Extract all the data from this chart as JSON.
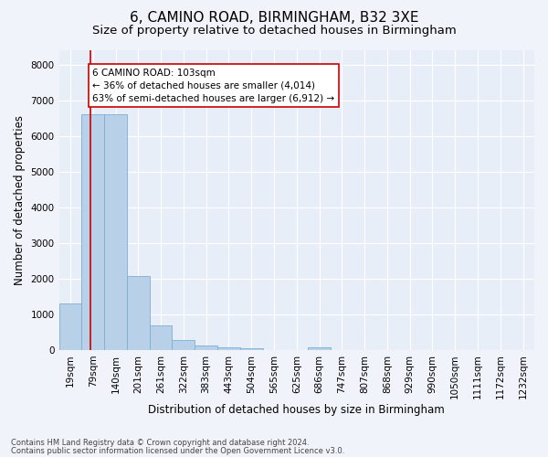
{
  "title": "6, CAMINO ROAD, BIRMINGHAM, B32 3XE",
  "subtitle": "Size of property relative to detached houses in Birmingham",
  "xlabel": "Distribution of detached houses by size in Birmingham",
  "ylabel": "Number of detached properties",
  "footnote1": "Contains HM Land Registry data © Crown copyright and database right 2024.",
  "footnote2": "Contains public sector information licensed under the Open Government Licence v3.0.",
  "bar_categories": [
    "19sqm",
    "79sqm",
    "140sqm",
    "201sqm",
    "261sqm",
    "322sqm",
    "383sqm",
    "443sqm",
    "504sqm",
    "565sqm",
    "625sqm",
    "686sqm",
    "747sqm",
    "807sqm",
    "868sqm",
    "929sqm",
    "990sqm",
    "1050sqm",
    "1111sqm",
    "1172sqm",
    "1232sqm"
  ],
  "bar_values": [
    1300,
    6600,
    6600,
    2080,
    700,
    290,
    130,
    80,
    55,
    0,
    0,
    60,
    0,
    0,
    0,
    0,
    0,
    0,
    0,
    0,
    0
  ],
  "bar_color": "#b8d0e8",
  "bar_edge_color": "#7aafd4",
  "vline_color": "#cc0000",
  "vline_x_index": 1.38,
  "annotation_title": "6 CAMINO ROAD: 103sqm",
  "annotation_line1": "← 36% of detached houses are smaller (4,014)",
  "annotation_line2": "63% of semi-detached houses are larger (6,912) →",
  "annotation_box_color": "#ffffff",
  "annotation_box_edge": "#cc0000",
  "ylim": [
    0,
    8400
  ],
  "yticks": [
    0,
    1000,
    2000,
    3000,
    4000,
    5000,
    6000,
    7000,
    8000
  ],
  "background_color": "#f0f4fa",
  "plot_bg_color": "#e8eef8",
  "grid_color": "#ffffff",
  "title_fontsize": 11,
  "subtitle_fontsize": 9.5,
  "axis_label_fontsize": 8.5,
  "tick_fontsize": 7.5,
  "annotation_fontsize": 7.5,
  "footnote_fontsize": 6
}
